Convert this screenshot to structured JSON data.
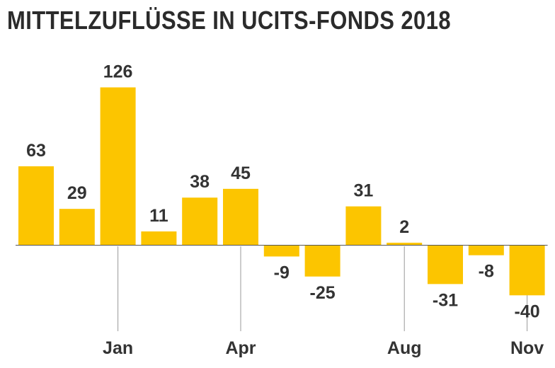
{
  "chart_data": {
    "type": "bar",
    "title": "MITTELZUFLÜSSE IN UCITS-FONDS 2018",
    "values": [
      63,
      29,
      126,
      11,
      38,
      45,
      -9,
      -25,
      31,
      2,
      -31,
      -8,
      -40
    ],
    "ticks": [
      {
        "label": "Jan",
        "bar_index": 2
      },
      {
        "label": "Apr",
        "bar_index": 5
      },
      {
        "label": "Aug",
        "bar_index": 9
      },
      {
        "label": "Nov",
        "bar_index": 12
      }
    ],
    "grid": false,
    "legend": "none"
  },
  "colors": {
    "bar": "#FCC500",
    "baseline": "#555555",
    "tick_line": "#999999",
    "text": "#333333"
  }
}
